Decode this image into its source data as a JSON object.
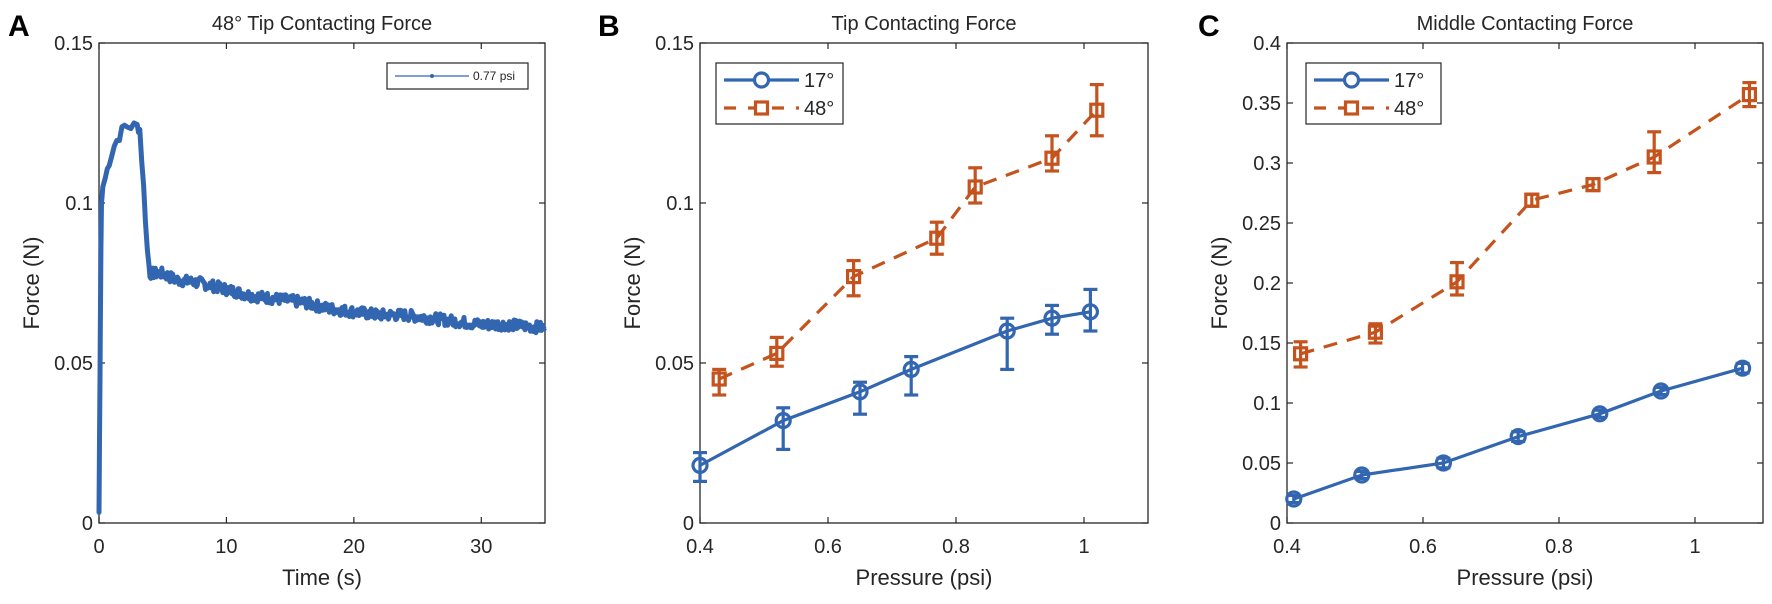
{
  "chart_data": [
    {
      "panel": "A",
      "type": "line",
      "title": "48° Tip Contacting Force",
      "xlabel": "Time (s)",
      "ylabel": "Force (N)",
      "xlim": [
        0,
        35
      ],
      "ylim": [
        0,
        0.15
      ],
      "xticks": [
        0,
        10,
        20,
        30
      ],
      "xtick_labels": [
        "0",
        "10",
        "20",
        "30"
      ],
      "yticks": [
        0,
        0.05,
        0.1,
        0.15
      ],
      "ytick_labels": [
        "0",
        "0.05",
        "0.1",
        "0.15"
      ],
      "grid": false,
      "legend": {
        "position": "top-right",
        "entries": [
          "0.77 psi"
        ]
      },
      "series": [
        {
          "name": "0.77 psi",
          "color": "#3366b0",
          "x": [
            0,
            0.05,
            0.1,
            0.15,
            0.2,
            0.3,
            0.5,
            0.8,
            1.2,
            1.6,
            2.0,
            2.5,
            3.0,
            3.2,
            3.5,
            3.8,
            4.0,
            5,
            6,
            8,
            10,
            12,
            14,
            16,
            18,
            20,
            22,
            24,
            26,
            28,
            30,
            32,
            35
          ],
          "y": [
            0.003,
            0.03,
            0.06,
            0.085,
            0.1,
            0.105,
            0.108,
            0.113,
            0.118,
            0.121,
            0.124,
            0.124,
            0.124,
            0.123,
            0.105,
            0.085,
            0.078,
            0.078,
            0.076,
            0.075,
            0.073,
            0.071,
            0.07,
            0.069,
            0.067,
            0.066,
            0.065,
            0.065,
            0.064,
            0.063,
            0.062,
            0.062,
            0.061
          ]
        }
      ]
    },
    {
      "panel": "B",
      "type": "line",
      "title": "Tip Contacting Force",
      "xlabel": "Pressure (psi)",
      "ylabel": "Force (N)",
      "xlim": [
        0.4,
        1.1
      ],
      "ylim": [
        0,
        0.15
      ],
      "xticks": [
        0.4,
        0.6,
        0.8,
        1.0
      ],
      "xtick_labels": [
        "0.4",
        "0.6",
        "0.8",
        "1"
      ],
      "yticks": [
        0,
        0.05,
        0.1,
        0.15
      ],
      "ytick_labels": [
        "0",
        "0.05",
        "0.1",
        "0.15"
      ],
      "grid": false,
      "legend": {
        "position": "top-left",
        "entries": [
          "17°",
          "48°"
        ]
      },
      "series": [
        {
          "name": "17°",
          "color": "#3366b0",
          "marker": "circle",
          "linestyle": "solid",
          "x": [
            0.4,
            0.53,
            0.65,
            0.73,
            0.88,
            0.95,
            1.01
          ],
          "y": [
            0.018,
            0.032,
            0.041,
            0.048,
            0.06,
            0.064,
            0.066
          ],
          "lower": [
            0.013,
            0.023,
            0.034,
            0.04,
            0.048,
            0.059,
            0.06
          ],
          "upper": [
            0.022,
            0.036,
            0.044,
            0.052,
            0.064,
            0.068,
            0.073
          ]
        },
        {
          "name": "48°",
          "color": "#c4531d",
          "marker": "square",
          "linestyle": "dashed",
          "x": [
            0.43,
            0.52,
            0.64,
            0.77,
            0.83,
            0.95,
            1.02
          ],
          "y": [
            0.045,
            0.053,
            0.077,
            0.089,
            0.105,
            0.114,
            0.129
          ],
          "lower": [
            0.04,
            0.049,
            0.071,
            0.084,
            0.1,
            0.11,
            0.121
          ],
          "upper": [
            0.048,
            0.058,
            0.082,
            0.094,
            0.111,
            0.121,
            0.137
          ]
        }
      ]
    },
    {
      "panel": "C",
      "type": "line",
      "title": "Middle Contacting Force",
      "xlabel": "Pressure (psi)",
      "ylabel": "Force (N)",
      "xlim": [
        0.4,
        1.1
      ],
      "ylim": [
        0,
        0.4
      ],
      "xticks": [
        0.4,
        0.6,
        0.8,
        1.0
      ],
      "xtick_labels": [
        "0.4",
        "0.6",
        "0.8",
        "1"
      ],
      "yticks": [
        0,
        0.05,
        0.1,
        0.15,
        0.2,
        0.25,
        0.3,
        0.35,
        0.4
      ],
      "ytick_labels": [
        "0",
        "0.05",
        "0.1",
        "0.15",
        "0.2",
        "0.25",
        "0.3",
        "0.35",
        "0.4"
      ],
      "grid": false,
      "legend": {
        "position": "top-left",
        "entries": [
          "17°",
          "48°"
        ]
      },
      "series": [
        {
          "name": "17°",
          "color": "#3366b0",
          "marker": "circle",
          "linestyle": "solid",
          "x": [
            0.41,
            0.51,
            0.63,
            0.74,
            0.86,
            0.95,
            1.07
          ],
          "y": [
            0.02,
            0.04,
            0.05,
            0.072,
            0.091,
            0.11,
            0.129
          ],
          "lower": [
            0.017,
            0.037,
            0.046,
            0.068,
            0.088,
            0.107,
            0.125
          ],
          "upper": [
            0.023,
            0.043,
            0.054,
            0.076,
            0.094,
            0.113,
            0.133
          ]
        },
        {
          "name": "48°",
          "color": "#c4531d",
          "marker": "square",
          "linestyle": "dashed",
          "x": [
            0.42,
            0.53,
            0.65,
            0.76,
            0.85,
            0.94,
            1.08
          ],
          "y": [
            0.141,
            0.159,
            0.201,
            0.269,
            0.282,
            0.305,
            0.357
          ],
          "lower": [
            0.13,
            0.15,
            0.19,
            0.264,
            0.277,
            0.292,
            0.347
          ],
          "upper": [
            0.151,
            0.166,
            0.217,
            0.274,
            0.287,
            0.326,
            0.367
          ]
        }
      ]
    }
  ]
}
